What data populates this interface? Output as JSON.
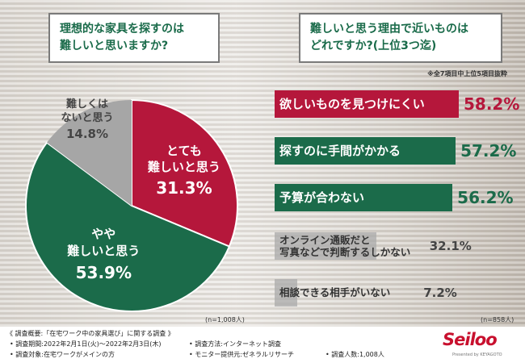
{
  "questions": {
    "left_line1": "理想的な家具を探すのは",
    "left_line2": "難しいと思いますか?",
    "right_line1": "難しいと思う理由で近いものは",
    "right_line2": "どれですか?(上位3つ迄)"
  },
  "note_top5": "※全7項目中上位5項目抜粋",
  "n_left": "(n=1,008人)",
  "n_right": "(n=858人)",
  "colors": {
    "red": "#b5173b",
    "green": "#1b6b4a",
    "gray": "#a6a6a6",
    "dark_text": "#444444"
  },
  "chart_data": [
    {
      "type": "pie",
      "slices": [
        {
          "label": "とても難しいと思う",
          "label_lines": [
            "とても",
            "難しいと思う"
          ],
          "value": 31.3,
          "value_text": "31.3%"
        },
        {
          "label": "やや難しいと思う",
          "label_lines": [
            "やや",
            "難しいと思う"
          ],
          "value": 53.9,
          "value_text": "53.9%"
        },
        {
          "label": "難しくはないと思う",
          "label_lines": [
            "難しくは",
            "ないと思う"
          ],
          "value": 14.8,
          "value_text": "14.8%"
        }
      ]
    },
    {
      "type": "bar",
      "orientation": "horizontal",
      "categories": [
        "欲しいものを見つけにくい",
        "探すのに手間がかかる",
        "予算が合わない",
        "オンライン通販だと写真などで判断するしかない",
        "相談できる相手がいない"
      ],
      "label_lines": [
        [
          "欲しいものを見つけにくい"
        ],
        [
          "探すのに手間がかかる"
        ],
        [
          "予算が合わない"
        ],
        [
          "オンライン通販だと",
          "写真などで判断するしかない"
        ],
        [
          "相談できる相手がいない"
        ]
      ],
      "values": [
        58.2,
        57.2,
        56.2,
        32.1,
        7.2
      ],
      "value_texts": [
        "58.2%",
        "57.2%",
        "56.2%",
        "32.1%",
        "7.2%"
      ]
    }
  ],
  "footer": {
    "title": "《 調査概要:「在宅ワーク中の家具選び」に関する調査 》",
    "period": "• 調査期間:2022年2月1日(火)〜2022年2月3日(木)",
    "method": "• 調査方法:インターネット調査",
    "target": "• 調査対象:在宅ワークがメインの方",
    "provider": "• モニター提供元:ゼネラルリサーチ",
    "count": "• 調査人数:1,008人",
    "logo": "Seiloo",
    "logo_sub": "Presented by KEYAGOTO"
  }
}
